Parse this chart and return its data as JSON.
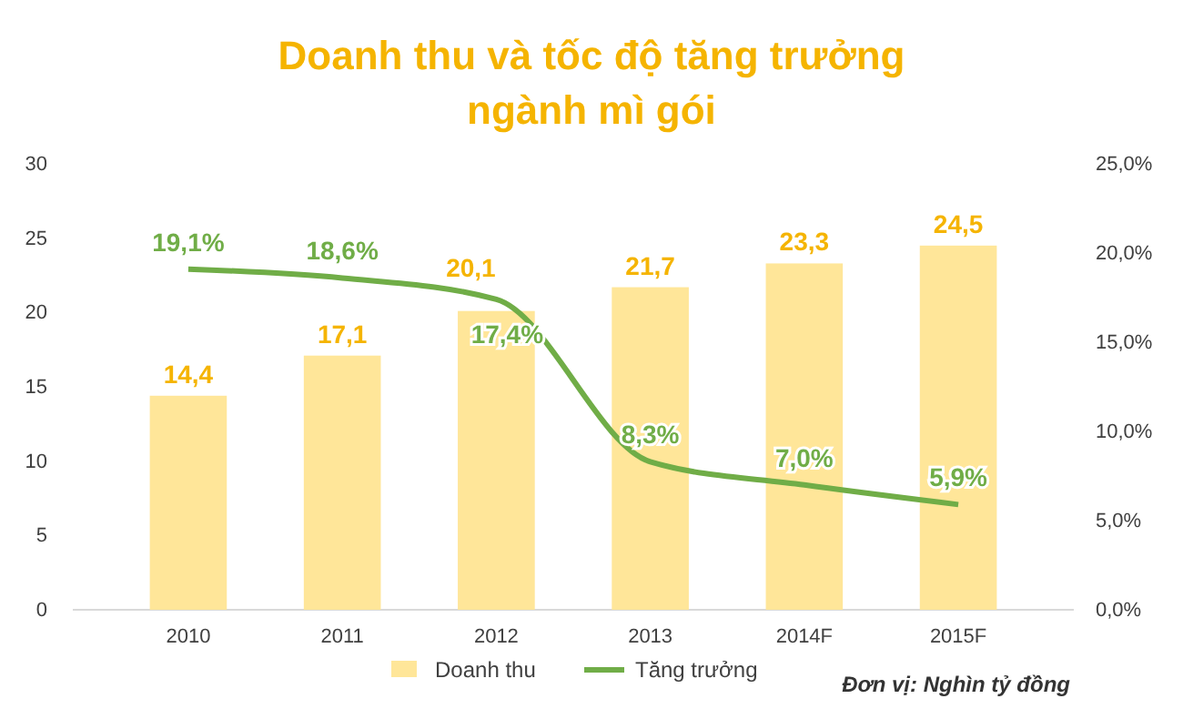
{
  "chart_data": {
    "type": "bar",
    "title": "Doanh thu và tốc độ tăng trưởng ngành mì gói",
    "categories": [
      "2010",
      "2011",
      "2012",
      "2013",
      "2014F",
      "2015F"
    ],
    "series": [
      {
        "name": "Doanh thu",
        "color": "#ffe699",
        "values": [
          14.4,
          17.1,
          20.1,
          21.7,
          23.3,
          24.5
        ],
        "value_labels": [
          "14,4",
          "17,1",
          "20,1",
          "21,7",
          "23,3",
          "24,5"
        ]
      },
      {
        "name": "Tăng trưởng",
        "type": "line",
        "axis": "y2",
        "color": "#70ad47",
        "values": [
          19.1,
          18.6,
          17.4,
          8.3,
          7.0,
          5.9
        ],
        "value_labels": [
          "19,1%",
          "18,6%",
          "17,4%",
          "8,3%",
          "7,0%",
          "5,9%"
        ]
      }
    ],
    "ylim": [
      0,
      30
    ],
    "yticks": [
      0,
      5,
      10,
      15,
      20,
      25,
      30
    ],
    "y2lim": [
      0,
      25
    ],
    "y2ticks": [
      {
        "value": 0,
        "label": "0,0%"
      },
      {
        "value": 5,
        "label": "5,0%"
      },
      {
        "value": 10,
        "label": "10,0%"
      },
      {
        "value": 15,
        "label": "15,0%"
      },
      {
        "value": 20,
        "label": "20,0%"
      },
      {
        "value": 25,
        "label": "25,0%"
      }
    ],
    "legend": "bottom",
    "marker": "none",
    "line_style": "solid",
    "annotations": [
      "Đơn vị: Nghìn tỷ đồng"
    ]
  }
}
